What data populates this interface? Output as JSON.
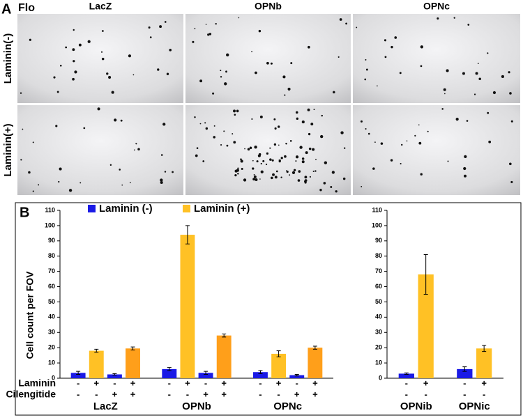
{
  "panel_a": {
    "label": "A",
    "channel": "Flo",
    "columns": [
      "LacZ",
      "OPNb",
      "OPNc"
    ],
    "rows": [
      "Laminin(-)",
      "Laminin(+)"
    ]
  },
  "panel_b_label": "B",
  "chart_data": [
    {
      "type": "bar",
      "ylabel": "Cell count per FOV",
      "legend": [
        {
          "name": "Laminin (-)",
          "color": "#1a1ae6"
        },
        {
          "name": "Laminin (+)",
          "color": "#ffc125"
        }
      ],
      "groups": [
        "LacZ",
        "OPNb",
        "OPNc"
      ],
      "values": [
        3.5,
        18,
        2.5,
        19.5,
        6,
        94,
        3.5,
        28,
        4,
        16,
        2,
        20
      ],
      "errors": [
        1,
        1,
        0.5,
        1,
        1,
        6,
        1,
        1,
        1,
        2,
        0.5,
        1
      ],
      "colors": [
        "#1a1ae6",
        "#ffc125",
        "#1a1ae6",
        "#ff9f1a",
        "#1a1ae6",
        "#ffc125",
        "#1a1ae6",
        "#ff9f1a",
        "#1a1ae6",
        "#ffc125",
        "#1a1ae6",
        "#ff9f1a"
      ],
      "conditions": [
        {
          "name": "Laminin",
          "signs": [
            "-",
            "+",
            "-",
            "+",
            "-",
            "+",
            "-",
            "+",
            "-",
            "+",
            "-",
            "+"
          ]
        },
        {
          "name": "Cilengitide",
          "signs": [
            "-",
            "-",
            "+",
            "+",
            "-",
            "-",
            "+",
            "+",
            "-",
            "-",
            "+",
            "+"
          ]
        }
      ],
      "ylim": [
        0,
        110
      ],
      "yticks": [
        0,
        10,
        20,
        30,
        40,
        50,
        60,
        70,
        80,
        90,
        100,
        110
      ]
    },
    {
      "type": "bar",
      "groups": [
        "OPNib",
        "OPNic"
      ],
      "values": [
        3,
        68,
        6,
        19.5
      ],
      "errors": [
        0.5,
        13,
        1.5,
        2
      ],
      "colors": [
        "#1a1ae6",
        "#ffc125",
        "#1a1ae6",
        "#ffc125"
      ],
      "conditions": [
        {
          "signs": [
            "-",
            "+",
            "-",
            "+"
          ]
        },
        {
          "signs": [
            "-",
            "-",
            "-",
            "-"
          ]
        }
      ],
      "ylim": [
        0,
        110
      ],
      "yticks": [
        0,
        10,
        20,
        30,
        40,
        50,
        60,
        70,
        80,
        90,
        100,
        110
      ]
    }
  ]
}
